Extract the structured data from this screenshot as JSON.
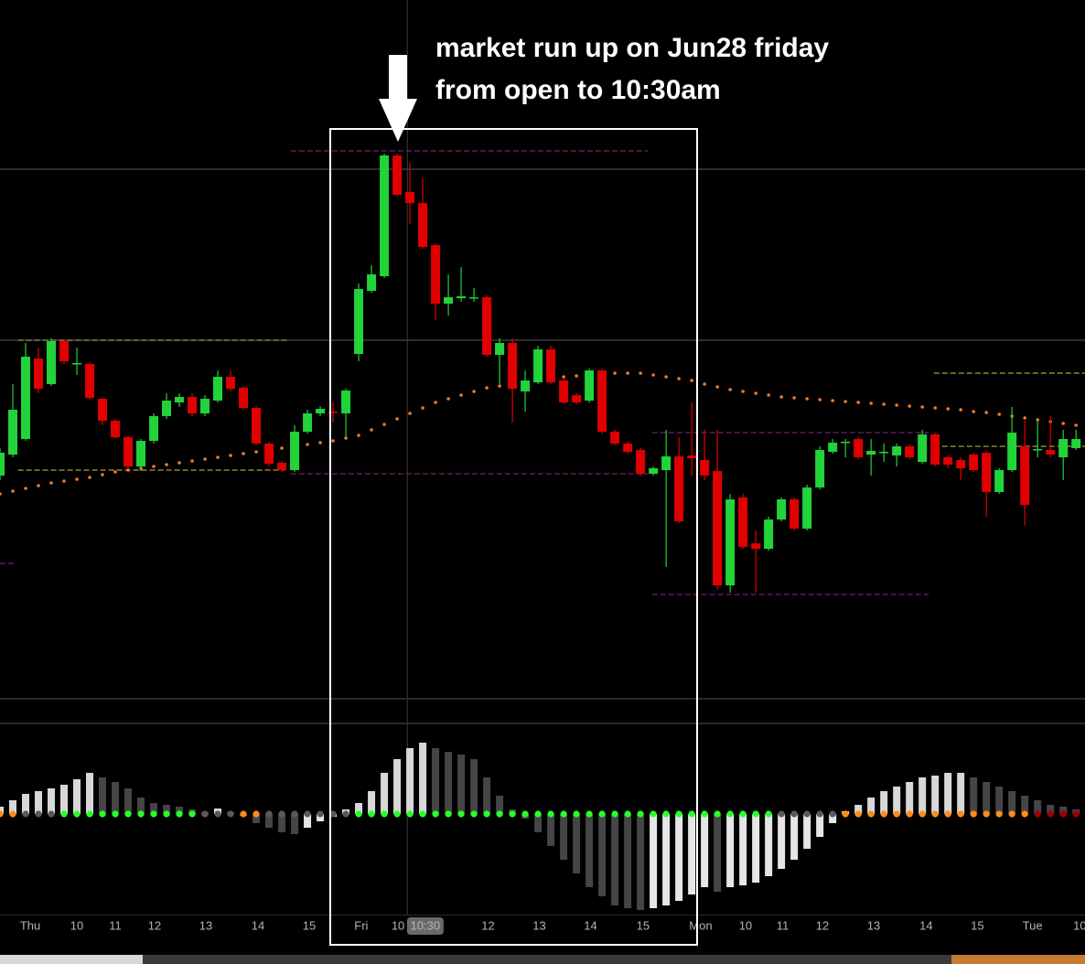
{
  "chart_data": {
    "type": "candlestick",
    "annotation": [
      "market run up on Jun28 friday",
      "from open to 10:30am"
    ],
    "x": [
      0,
      1,
      2,
      3,
      4,
      5,
      6,
      7,
      8,
      9,
      10,
      11,
      12,
      13,
      14,
      15,
      16,
      17,
      18,
      19,
      20,
      21,
      22,
      23,
      24,
      25,
      26,
      27,
      28,
      29,
      30,
      31,
      32,
      33,
      34,
      35,
      36,
      37,
      38,
      39,
      40,
      41,
      42,
      43,
      44,
      45,
      46,
      47,
      48,
      49,
      50,
      51,
      52,
      53,
      54,
      55,
      56,
      57,
      58,
      59,
      60,
      61,
      62,
      63,
      64,
      65,
      66,
      67,
      68,
      69,
      70,
      71,
      72,
      73,
      74,
      75,
      76,
      77,
      78,
      79,
      80,
      81,
      82,
      83,
      84
    ],
    "open": [
      240,
      263,
      280,
      368,
      340,
      387,
      362,
      362,
      324,
      300,
      282,
      250,
      278,
      305,
      320,
      326,
      308,
      322,
      348,
      336,
      314,
      275,
      254,
      246,
      288,
      308,
      310,
      308,
      373,
      442,
      458,
      590,
      550,
      538,
      492,
      428,
      434,
      434,
      435,
      372,
      385,
      332,
      342,
      378,
      344,
      328,
      322,
      355,
      288,
      275,
      268,
      242,
      246,
      261,
      262,
      257,
      245,
      120,
      216,
      166,
      160,
      192,
      214,
      182,
      227,
      266,
      276,
      280,
      263,
      265,
      262,
      272,
      255,
      285,
      260,
      257,
      263,
      265,
      222,
      246,
      272,
      268,
      268,
      260,
      270
    ],
    "high": [
      270,
      340,
      385,
      380,
      390,
      388,
      380,
      364,
      325,
      302,
      284,
      280,
      308,
      330,
      330,
      330,
      328,
      355,
      355,
      338,
      316,
      277,
      256,
      295,
      312,
      316,
      320,
      335,
      450,
      470,
      592,
      592,
      582,
      565,
      494,
      460,
      468,
      445,
      437,
      390,
      390,
      355,
      382,
      382,
      346,
      330,
      357,
      357,
      290,
      277,
      270,
      250,
      290,
      282,
      320,
      290,
      290,
      220,
      220,
      180,
      195,
      216,
      216,
      230,
      272,
      280,
      280,
      282,
      280,
      275,
      275,
      274,
      290,
      287,
      262,
      260,
      265,
      267,
      248,
      315,
      300,
      300,
      305,
      290,
      290
    ],
    "low": [
      235,
      260,
      278,
      330,
      338,
      362,
      350,
      323,
      295,
      280,
      248,
      245,
      275,
      302,
      315,
      305,
      305,
      320,
      332,
      312,
      273,
      250,
      244,
      244,
      286,
      305,
      298,
      282,
      365,
      440,
      456,
      545,
      515,
      488,
      410,
      415,
      430,
      430,
      370,
      340,
      298,
      310,
      340,
      340,
      318,
      318,
      320,
      286,
      273,
      264,
      240,
      240,
      140,
      188,
      240,
      235,
      115,
      112,
      160,
      112,
      158,
      190,
      180,
      180,
      225,
      264,
      260,
      258,
      240,
      255,
      250,
      258,
      253,
      250,
      248,
      235,
      244,
      195,
      220,
      244,
      185,
      260,
      260,
      235,
      268
    ],
    "close": [
      265,
      312,
      370,
      335,
      387,
      365,
      363,
      325,
      300,
      282,
      250,
      278,
      305,
      322,
      326,
      308,
      324,
      348,
      335,
      314,
      275,
      253,
      246,
      288,
      308,
      313,
      309,
      333,
      444,
      460,
      590,
      547,
      538,
      490,
      428,
      435,
      436,
      435,
      372,
      385,
      335,
      344,
      378,
      342,
      320,
      320,
      355,
      288,
      275,
      266,
      242,
      248,
      261,
      190,
      259,
      240,
      120,
      214,
      162,
      160,
      192,
      214,
      182,
      227,
      268,
      276,
      277,
      260,
      267,
      266,
      272,
      260,
      285,
      252,
      252,
      248,
      246,
      222,
      246,
      287,
      208,
      269,
      263,
      280,
      280
    ],
    "up_color": "#22d33a",
    "down_color": "#e00000",
    "ma": [
      220,
      223,
      226,
      229,
      232,
      234,
      236,
      238,
      241,
      244,
      246,
      248,
      250,
      252,
      254,
      256,
      258,
      260,
      262,
      264,
      266,
      268,
      270,
      272,
      274,
      276,
      278,
      281,
      284,
      290,
      296,
      302,
      308,
      314,
      320,
      324,
      328,
      332,
      336,
      338,
      340,
      342,
      344,
      346,
      348,
      349,
      350,
      351,
      352,
      352,
      352,
      350,
      348,
      346,
      344,
      340,
      337,
      334,
      332,
      330,
      328,
      326,
      325,
      324,
      323,
      322,
      321,
      320,
      319,
      318,
      317,
      316,
      315,
      314,
      313,
      312,
      310,
      309,
      307,
      305,
      303,
      301,
      299,
      297,
      295
    ],
    "ma_color": "#f07a2a",
    "levels": [
      {
        "value": 388,
        "start": 1.4,
        "end": 22.5,
        "color": "#d6c84a"
      },
      {
        "value": 246,
        "start": 1.4,
        "end": 22.2,
        "color": "#d6c84a"
      },
      {
        "value": 595,
        "start": 22.7,
        "end": 50.6,
        "color": "#8a2a8a"
      },
      {
        "value": 242,
        "start": 22.7,
        "end": 50.6,
        "color": "#8a2a8a"
      },
      {
        "value": 287,
        "start": 50.9,
        "end": 72.5,
        "color": "#8a2a8a"
      },
      {
        "value": 110,
        "start": 50.9,
        "end": 72.5,
        "color": "#8a2a8a"
      },
      {
        "value": 352,
        "start": 72.9,
        "end": 84.7,
        "color": "#d6c84a"
      },
      {
        "value": 272,
        "start": 72.9,
        "end": 84.7,
        "color": "#d6c84a"
      },
      {
        "value": 144,
        "start": 0,
        "end": 1.3,
        "color": "#8a2a8a"
      }
    ],
    "hlines": [
      388,
      575
    ],
    "vline": 31.8,
    "xlim": [
      0,
      84.7
    ],
    "ylim": [
      0,
      760
    ],
    "hist": [
      8,
      15,
      22,
      25,
      28,
      32,
      38,
      45,
      40,
      35,
      28,
      18,
      12,
      10,
      8,
      5,
      2,
      6,
      2,
      -2,
      -10,
      -15,
      -20,
      -22,
      -15,
      -8,
      -3,
      5,
      12,
      25,
      45,
      60,
      72,
      78,
      72,
      68,
      65,
      60,
      40,
      20,
      5,
      -5,
      -20,
      -35,
      -50,
      -65,
      -80,
      -90,
      -100,
      -103,
      -105,
      -103,
      -100,
      -95,
      -88,
      -80,
      -85,
      -80,
      -78,
      -75,
      -68,
      -60,
      -50,
      -38,
      -25,
      -10,
      3,
      10,
      18,
      25,
      30,
      35,
      40,
      42,
      45,
      45,
      40,
      35,
      30,
      25,
      20,
      15,
      10,
      8,
      5
    ],
    "hist_ylim": [
      -110,
      110
    ],
    "hist_colors": {
      "up_rising": "#d8d8d8",
      "up_falling": "#454545",
      "down_falling": "#454545",
      "down_rising": "#e6e6e6"
    },
    "squeeze": [
      "o",
      "o",
      "y",
      "y",
      "y",
      "g",
      "g",
      "g",
      "g",
      "g",
      "g",
      "g",
      "g",
      "g",
      "g",
      "g",
      "y",
      "y",
      "y",
      "o",
      "o",
      "y",
      "y",
      "y",
      "y",
      "y",
      "y",
      "y",
      "g",
      "g",
      "g",
      "g",
      "g",
      "g",
      "g",
      "g",
      "g",
      "g",
      "g",
      "g",
      "g",
      "g",
      "g",
      "g",
      "g",
      "g",
      "g",
      "g",
      "g",
      "g",
      "g",
      "g",
      "g",
      "g",
      "g",
      "g",
      "g",
      "g",
      "g",
      "g",
      "g",
      "y",
      "y",
      "y",
      "y",
      "y",
      "o",
      "o",
      "o",
      "o",
      "o",
      "o",
      "o",
      "o",
      "o",
      "o",
      "o",
      "o",
      "o",
      "o",
      "o",
      "r",
      "r",
      "r",
      "r"
    ],
    "squeeze_colors": {
      "g": "#2bff2b",
      "y": "#5a5a5a",
      "o": "#ff8c1a",
      "r": "#a00000"
    },
    "xticks": [
      {
        "value": 2.36,
        "label": "Thu"
      },
      {
        "value": 6,
        "label": "10"
      },
      {
        "value": 9,
        "label": "11"
      },
      {
        "value": 12.07,
        "label": "12"
      },
      {
        "value": 16.07,
        "label": "13"
      },
      {
        "value": 20.14,
        "label": "14"
      },
      {
        "value": 24.14,
        "label": "15"
      },
      {
        "value": 28.2,
        "label": "Fri"
      },
      {
        "value": 31.07,
        "label": "10"
      },
      {
        "value": 33.2,
        "label": "10:30"
      },
      {
        "value": 38.1,
        "label": "12"
      },
      {
        "value": 42.1,
        "label": "13"
      },
      {
        "value": 46.1,
        "label": "14"
      },
      {
        "value": 50.2,
        "label": "15"
      },
      {
        "value": 54.7,
        "label": "Mon"
      },
      {
        "value": 58.2,
        "label": "10"
      },
      {
        "value": 61.1,
        "label": "11"
      },
      {
        "value": 64.2,
        "label": "12"
      },
      {
        "value": 68.2,
        "label": "13"
      },
      {
        "value": 72.3,
        "label": "14"
      },
      {
        "value": 76.3,
        "label": "15"
      },
      {
        "value": 80.6,
        "label": "Tue"
      },
      {
        "value": 84.3,
        "label": "10"
      }
    ],
    "highlight_tick": 9
  }
}
